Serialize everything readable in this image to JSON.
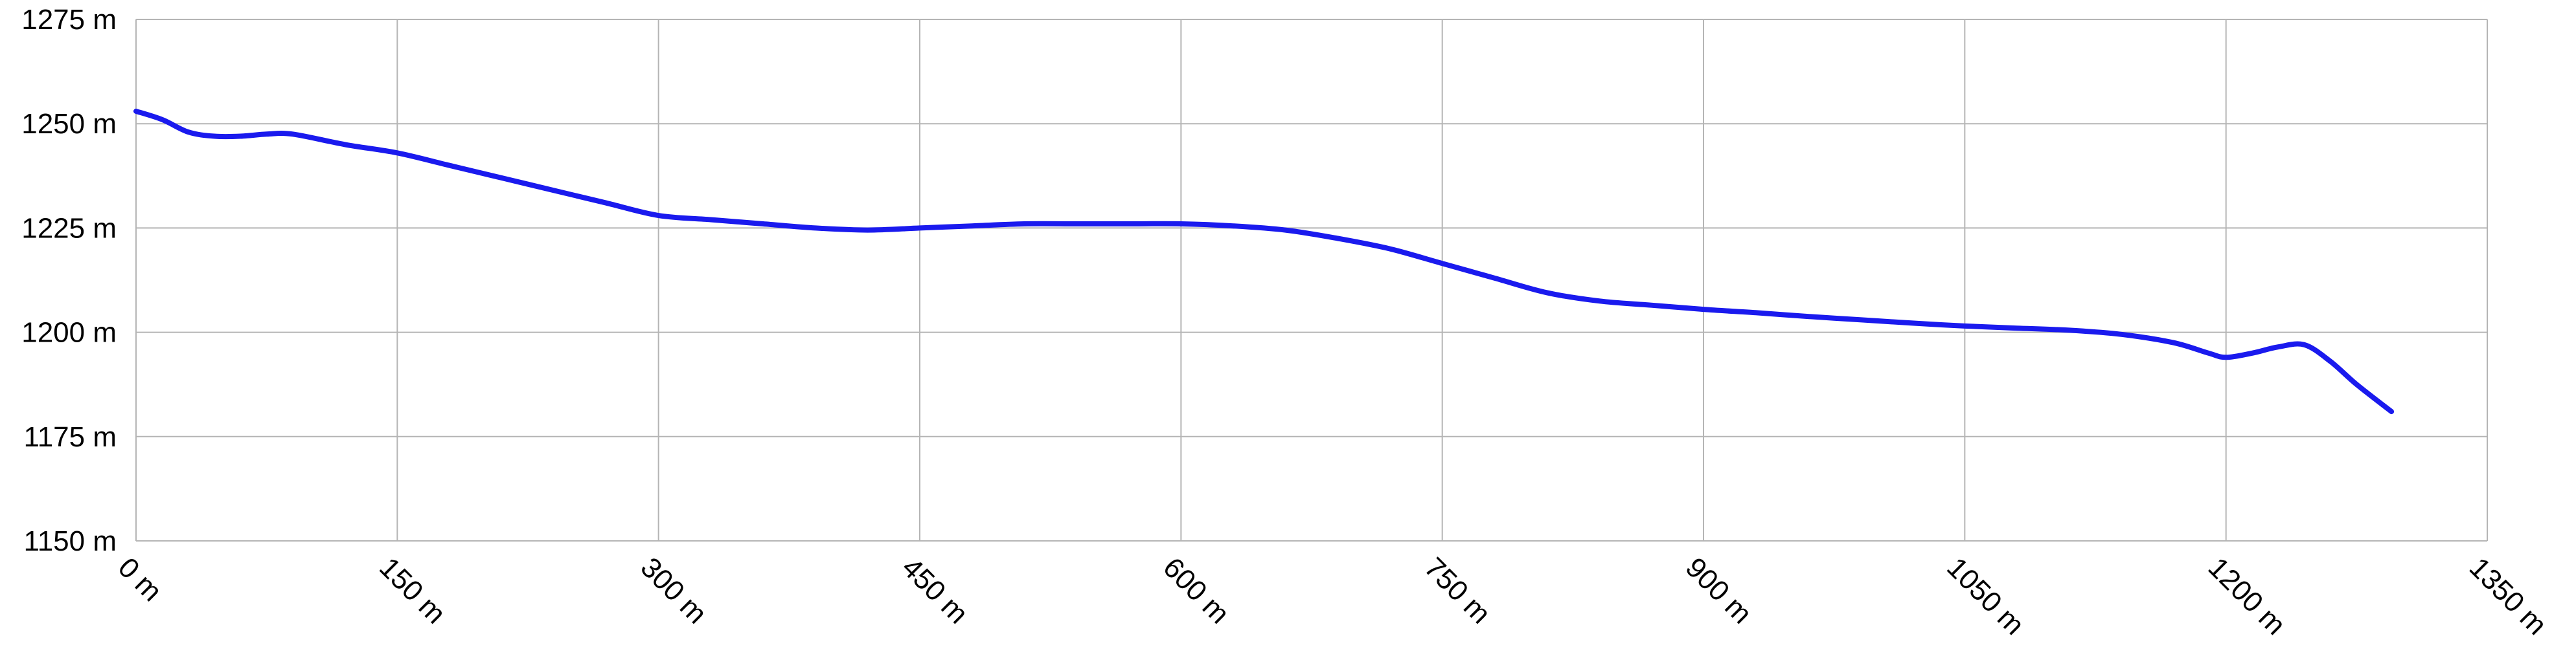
{
  "chart_data": {
    "type": "line",
    "title": "",
    "xlabel": "",
    "ylabel": "",
    "xlim": [
      0,
      1350
    ],
    "ylim": [
      1150,
      1275
    ],
    "x_ticks": [
      0,
      150,
      300,
      450,
      600,
      750,
      900,
      1050,
      1200,
      1350
    ],
    "x_tick_labels": [
      "0 m",
      "150 m",
      "300 m",
      "450 m",
      "600 m",
      "750 m",
      "900 m",
      "1050 m",
      "1200 m",
      "1350 m"
    ],
    "y_ticks": [
      1150,
      1175,
      1200,
      1225,
      1250,
      1275
    ],
    "y_tick_labels": [
      "1150 m",
      "1175 m",
      "1200 m",
      "1225 m",
      "1250 m",
      "1275 m"
    ],
    "grid": true,
    "colors": {
      "series": "#1a1aee",
      "grid": "#b5b5b5"
    },
    "series": [
      {
        "name": "",
        "x": [
          0,
          15,
          30,
          45,
          60,
          75,
          90,
          120,
          150,
          180,
          210,
          240,
          270,
          300,
          330,
          360,
          390,
          420,
          450,
          480,
          510,
          540,
          570,
          600,
          630,
          660,
          690,
          720,
          750,
          780,
          810,
          840,
          870,
          900,
          930,
          960,
          990,
          1020,
          1050,
          1080,
          1110,
          1140,
          1170,
          1190,
          1200,
          1215,
          1230,
          1245,
          1260,
          1275,
          1295
        ],
        "values": [
          1253,
          1251,
          1248,
          1247,
          1247,
          1247.5,
          1247.5,
          1245,
          1243,
          1240,
          1237,
          1234,
          1231,
          1228,
          1227,
          1226,
          1225,
          1224.5,
          1225,
          1225.5,
          1226,
          1226,
          1226,
          1226,
          1225.5,
          1224.5,
          1222.5,
          1220,
          1216.5,
          1213,
          1209.5,
          1207.5,
          1206.5,
          1205.5,
          1204.7,
          1203.8,
          1203,
          1202.2,
          1201.5,
          1201,
          1200.5,
          1199.5,
          1197.5,
          1195,
          1194,
          1195,
          1196.5,
          1197,
          1193,
          1187.5,
          1181
        ]
      }
    ]
  }
}
